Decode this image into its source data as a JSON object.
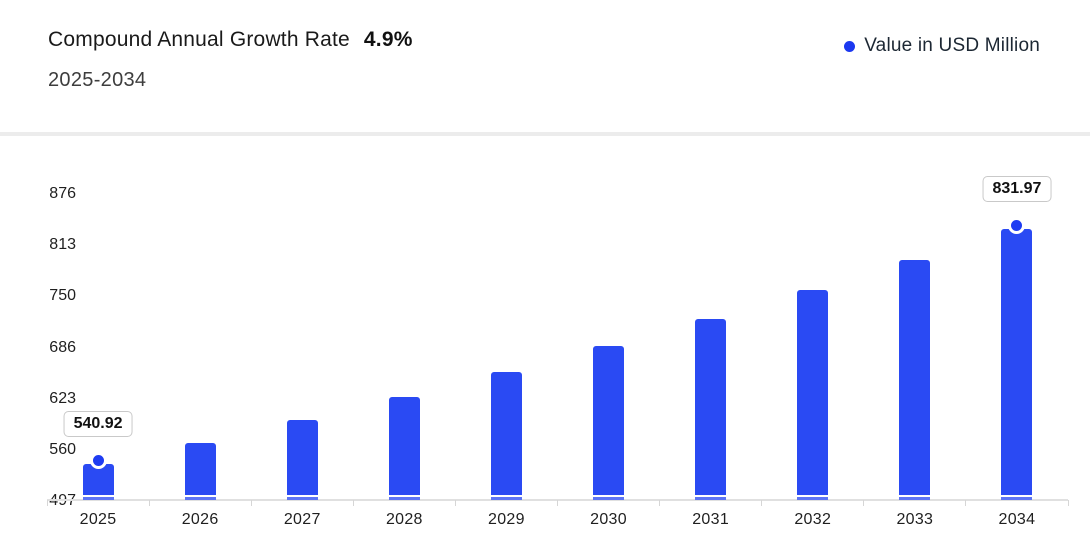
{
  "header": {
    "title": "Compound Annual Growth Rate",
    "cagr": "4.9%",
    "period": "2025-2034"
  },
  "legend": {
    "label": "Value in USD Million",
    "dot_color": "#1b38f0"
  },
  "chart_data": {
    "type": "bar",
    "title": "Compound Annual Growth Rate 4.9%, 2025-2034",
    "unit": "USD Million",
    "categories": [
      "2025",
      "2026",
      "2027",
      "2028",
      "2029",
      "2030",
      "2031",
      "2032",
      "2033",
      "2034"
    ],
    "values": [
      540.92,
      567.43,
      595.23,
      624.39,
      654.99,
      687.08,
      720.75,
      756.07,
      793.12,
      831.97
    ],
    "y_ticks": [
      876,
      813,
      750,
      686,
      623,
      560,
      497
    ],
    "ylim": [
      497,
      876
    ],
    "grid": false,
    "legend_position": "top-right",
    "data_labels": {
      "2025": "540.92",
      "2034": "831.97"
    },
    "marked_categories": [
      "2025",
      "2034"
    ],
    "colors": {
      "bar": "#2a4af3",
      "bar_bottom_strip": "#5d74f4",
      "marker": "#1e3cf2",
      "axis": "#e0e0e0",
      "tick": "#d6d6d6"
    }
  }
}
